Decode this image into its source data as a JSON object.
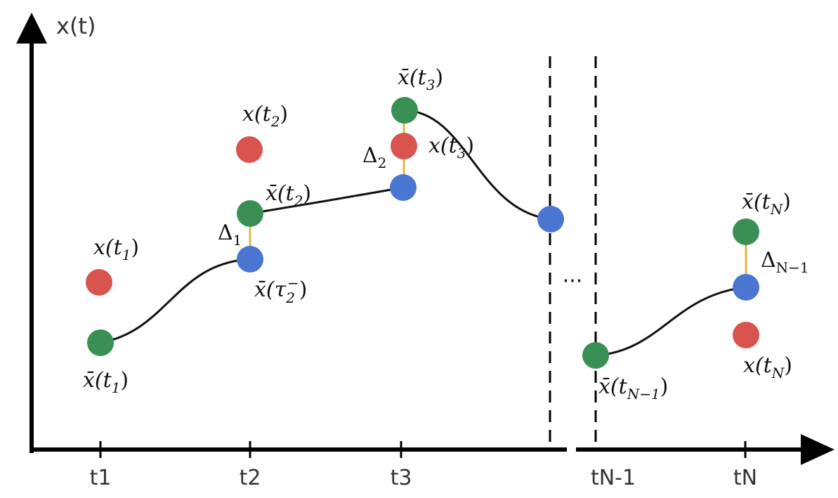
{
  "axes": {
    "y_label": "x(t)",
    "x_ticks": [
      "t1",
      "t2",
      "t3",
      "tN-1",
      "tN"
    ]
  },
  "colors": {
    "measurement": "#d9534f",
    "start_state": "#3a8f55",
    "end_state": "#4a76d1",
    "defect": "#e5b443",
    "curve": "#111111"
  },
  "labels": {
    "x_t1": "x(t",
    "x_t1_sub": "1",
    "x_t2": "x(t",
    "x_t2_sub": "2",
    "x_t3": "x(t",
    "x_t3_sub": "3",
    "x_tN": "x(t",
    "x_tN_sub": "N",
    "xbar_t1": "x̄(t",
    "xbar_t1_sub": "1",
    "xbar_t2": "x̄(t",
    "xbar_t2_sub": "2",
    "xbar_t3": "x̄(t",
    "xbar_t3_sub": "3",
    "xbar_tN": "x̄(t",
    "xbar_tN_sub": "N",
    "xbar_tNm1": "x̄(t",
    "xbar_tNm1_sub": "N−1",
    "xbar_tau2": "x̄(τ",
    "xbar_tau2_sub": "2",
    "xbar_tau2_sup": "−",
    "close_paren": ")",
    "delta": "Δ",
    "delta1_sub": "1",
    "delta2_sub": "2",
    "deltaN_sub": "N−1",
    "ellipsis": "···"
  }
}
